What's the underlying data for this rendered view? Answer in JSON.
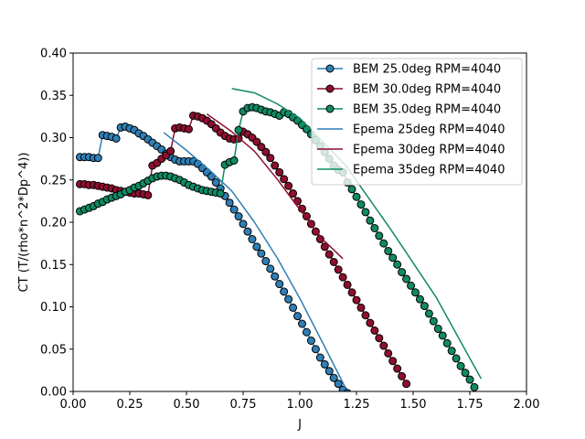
{
  "chart_data": {
    "type": "line",
    "title": "",
    "xlabel": "J",
    "ylabel": "CT (T/(rho*n^2*Dp^4))",
    "xlim": [
      0.0,
      2.0
    ],
    "ylim": [
      0.0,
      0.4
    ],
    "xticks": [
      0.0,
      0.25,
      0.5,
      0.75,
      1.0,
      1.25,
      1.5,
      1.75,
      2.0
    ],
    "xtick_labels": [
      "0.00",
      "0.25",
      "0.50",
      "0.75",
      "1.00",
      "1.25",
      "1.50",
      "1.75",
      "2.00"
    ],
    "yticks": [
      0.0,
      0.05,
      0.1,
      0.15,
      0.2,
      0.25,
      0.3,
      0.35,
      0.4
    ],
    "ytick_labels": [
      "0.00",
      "0.05",
      "0.10",
      "0.15",
      "0.20",
      "0.25",
      "0.30",
      "0.35",
      "0.40"
    ],
    "grid": false,
    "legend_position": "top-right",
    "series": [
      {
        "name": "BEM 25.0deg RPM=4040",
        "color": "#2f7fb7",
        "marker": "circle",
        "x": [
          0.03,
          0.05,
          0.07,
          0.09,
          0.11,
          0.13,
          0.15,
          0.17,
          0.19,
          0.21,
          0.23,
          0.25,
          0.27,
          0.29,
          0.31,
          0.33,
          0.35,
          0.37,
          0.39,
          0.41,
          0.43,
          0.45,
          0.47,
          0.49,
          0.51,
          0.53,
          0.55,
          0.57,
          0.59,
          0.61,
          0.63,
          0.65,
          0.67,
          0.69,
          0.71,
          0.73,
          0.75,
          0.77,
          0.79,
          0.81,
          0.83,
          0.85,
          0.87,
          0.89,
          0.91,
          0.93,
          0.95,
          0.97,
          0.99,
          1.01,
          1.03,
          1.05,
          1.07,
          1.09,
          1.11,
          1.13,
          1.15,
          1.17,
          1.19,
          1.21
        ],
        "y": [
          0.277,
          0.277,
          0.277,
          0.276,
          0.276,
          0.303,
          0.302,
          0.301,
          0.299,
          0.312,
          0.313,
          0.311,
          0.309,
          0.305,
          0.302,
          0.298,
          0.294,
          0.29,
          0.286,
          0.281,
          0.277,
          0.274,
          0.272,
          0.272,
          0.272,
          0.272,
          0.269,
          0.264,
          0.259,
          0.254,
          0.247,
          0.24,
          0.231,
          0.223,
          0.215,
          0.207,
          0.198,
          0.189,
          0.18,
          0.171,
          0.163,
          0.154,
          0.145,
          0.136,
          0.127,
          0.118,
          0.109,
          0.099,
          0.089,
          0.08,
          0.07,
          0.06,
          0.05,
          0.04,
          0.032,
          0.024,
          0.016,
          0.009,
          0.002,
          -0.002
        ]
      },
      {
        "name": "BEM 30.0deg RPM=4040",
        "color": "#8e0f2e",
        "marker": "circle",
        "x": [
          0.03,
          0.05,
          0.07,
          0.09,
          0.11,
          0.13,
          0.15,
          0.17,
          0.19,
          0.21,
          0.23,
          0.25,
          0.27,
          0.29,
          0.31,
          0.33,
          0.35,
          0.37,
          0.39,
          0.41,
          0.43,
          0.45,
          0.47,
          0.49,
          0.51,
          0.53,
          0.55,
          0.57,
          0.59,
          0.61,
          0.63,
          0.65,
          0.67,
          0.69,
          0.71,
          0.73,
          0.75,
          0.77,
          0.79,
          0.81,
          0.83,
          0.85,
          0.87,
          0.89,
          0.91,
          0.93,
          0.95,
          0.97,
          0.99,
          1.01,
          1.03,
          1.05,
          1.07,
          1.09,
          1.11,
          1.13,
          1.15,
          1.17,
          1.19,
          1.21,
          1.23,
          1.25,
          1.27,
          1.29,
          1.31,
          1.33,
          1.35,
          1.37,
          1.39,
          1.41,
          1.43,
          1.45,
          1.47
        ],
        "y": [
          0.245,
          0.245,
          0.244,
          0.244,
          0.243,
          0.242,
          0.241,
          0.24,
          0.238,
          0.237,
          0.236,
          0.235,
          0.234,
          0.234,
          0.233,
          0.232,
          0.267,
          0.27,
          0.275,
          0.279,
          0.284,
          0.311,
          0.312,
          0.311,
          0.31,
          0.326,
          0.325,
          0.323,
          0.32,
          0.316,
          0.311,
          0.306,
          0.302,
          0.299,
          0.298,
          0.299,
          0.307,
          0.304,
          0.3,
          0.295,
          0.289,
          0.283,
          0.276,
          0.267,
          0.259,
          0.251,
          0.243,
          0.234,
          0.225,
          0.216,
          0.207,
          0.198,
          0.189,
          0.18,
          0.171,
          0.162,
          0.153,
          0.144,
          0.135,
          0.126,
          0.117,
          0.108,
          0.099,
          0.09,
          0.081,
          0.072,
          0.063,
          0.054,
          0.045,
          0.036,
          0.027,
          0.018,
          0.009
        ]
      },
      {
        "name": "BEM 35.0deg RPM=4040",
        "color": "#0f8a64",
        "marker": "circle",
        "x": [
          0.03,
          0.05,
          0.07,
          0.09,
          0.11,
          0.13,
          0.15,
          0.17,
          0.19,
          0.21,
          0.23,
          0.25,
          0.27,
          0.29,
          0.31,
          0.33,
          0.35,
          0.37,
          0.39,
          0.41,
          0.43,
          0.45,
          0.47,
          0.49,
          0.51,
          0.53,
          0.55,
          0.57,
          0.59,
          0.61,
          0.63,
          0.65,
          0.67,
          0.69,
          0.71,
          0.73,
          0.75,
          0.77,
          0.79,
          0.81,
          0.83,
          0.85,
          0.87,
          0.89,
          0.91,
          0.93,
          0.95,
          0.97,
          0.99,
          1.01,
          1.03,
          1.05,
          1.07,
          1.09,
          1.11,
          1.13,
          1.15,
          1.17,
          1.19,
          1.21,
          1.23,
          1.25,
          1.27,
          1.29,
          1.31,
          1.33,
          1.35,
          1.37,
          1.39,
          1.41,
          1.43,
          1.45,
          1.47,
          1.49,
          1.51,
          1.53,
          1.55,
          1.57,
          1.59,
          1.61,
          1.63,
          1.65,
          1.67,
          1.69,
          1.71,
          1.73,
          1.75,
          1.77
        ],
        "y": [
          0.213,
          0.215,
          0.217,
          0.219,
          0.222,
          0.224,
          0.227,
          0.229,
          0.231,
          0.233,
          0.236,
          0.238,
          0.241,
          0.243,
          0.246,
          0.249,
          0.252,
          0.254,
          0.255,
          0.255,
          0.254,
          0.252,
          0.25,
          0.247,
          0.244,
          0.242,
          0.24,
          0.238,
          0.237,
          0.236,
          0.235,
          0.234,
          0.268,
          0.271,
          0.273,
          0.309,
          0.331,
          0.335,
          0.336,
          0.335,
          0.333,
          0.331,
          0.33,
          0.328,
          0.326,
          0.33,
          0.328,
          0.324,
          0.32,
          0.315,
          0.31,
          0.304,
          0.297,
          0.29,
          0.283,
          0.275,
          0.267,
          0.262,
          0.259,
          0.247,
          0.239,
          0.23,
          0.221,
          0.212,
          0.202,
          0.193,
          0.184,
          0.175,
          0.166,
          0.158,
          0.15,
          0.141,
          0.133,
          0.125,
          0.117,
          0.109,
          0.101,
          0.092,
          0.083,
          0.074,
          0.066,
          0.057,
          0.048,
          0.039,
          0.03,
          0.022,
          0.014,
          0.005
        ]
      },
      {
        "name": "Epema 25deg RPM=4040",
        "color": "#2f7fb7",
        "marker": "none",
        "x": [
          0.4,
          0.5,
          0.6,
          0.7,
          0.8,
          0.9,
          1.0,
          1.1,
          1.2
        ],
        "y": [
          0.306,
          0.285,
          0.262,
          0.237,
          0.2,
          0.158,
          0.11,
          0.058,
          0.005
        ]
      },
      {
        "name": "Epema 30deg RPM=4040",
        "color": "#8e0f2e",
        "marker": "none",
        "x": [
          0.59,
          0.7,
          0.8,
          0.9,
          1.0,
          1.1,
          1.19
        ],
        "y": [
          0.328,
          0.307,
          0.284,
          0.251,
          0.215,
          0.18,
          0.157
        ]
      },
      {
        "name": "Epema 35deg RPM=4040",
        "color": "#0f8a64",
        "marker": "none",
        "x": [
          0.7,
          0.8,
          0.9,
          1.0,
          1.2,
          1.4,
          1.6,
          1.8
        ],
        "y": [
          0.358,
          0.353,
          0.34,
          0.323,
          0.268,
          0.192,
          0.112,
          0.015
        ]
      }
    ]
  }
}
